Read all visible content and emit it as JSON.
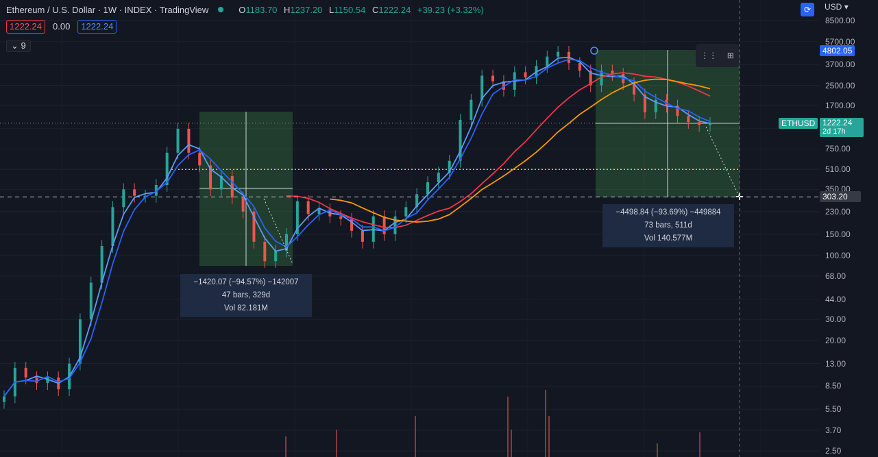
{
  "header": {
    "symbol_title": "Ethereum / U.S. Dollar · 1W · INDEX · TradingView",
    "ohlc": [
      {
        "k": "O",
        "v": "1183.70"
      },
      {
        "k": "H",
        "v": "1237.20"
      },
      {
        "k": "L",
        "v": "1150.54"
      },
      {
        "k": "C",
        "v": "1222.24"
      },
      {
        "k": "",
        "v": "+39.23 (+3.32%)"
      }
    ]
  },
  "indicators": {
    "first": "1222.24",
    "second": "0.00",
    "third": "1222.24",
    "collapsed_count": "9"
  },
  "axis": {
    "currency": "USD",
    "price_ticks": [
      "8500.00",
      "5700.00",
      "3700.00",
      "2500.00",
      "1700.00",
      "1100.00",
      "750.00",
      "510.00",
      "350.00",
      "230.00",
      "150.00",
      "100.00",
      "68.00",
      "44.00",
      "30.00",
      "20.00",
      "13.00",
      "8.50",
      "5.50",
      "3.70",
      "2.50"
    ]
  },
  "price_tags": {
    "crosshair_price": "303.20",
    "ath_price": "4802.05",
    "symbol": "ETHUSD",
    "last_price": "1222.24",
    "countdown": "2d 17h"
  },
  "measures": [
    {
      "change": "−1420.07 (−94.57%) −142007",
      "bars": "47 bars, 329d",
      "vol": "Vol 82.181M"
    },
    {
      "change": "−4498.84 (−93.69%) −449884",
      "bars": "73 bars, 511d",
      "vol": "Vol 140.577M"
    }
  ],
  "colors": {
    "up": "#26a69a",
    "down": "#ef5350",
    "ma_blue_1": "#2962ff",
    "ma_blue_2": "#5b9cf6",
    "ma_red": "#f23645",
    "ma_orange": "#ff9800",
    "accent": "#2962ff"
  },
  "chart_data": {
    "type": "line",
    "title": "Ethereum / U.S. Dollar · 1W · INDEX",
    "y_scale": "log",
    "ylim": [
      2.5,
      8500
    ],
    "series": [
      {
        "name": "Close",
        "values": [
          7,
          12,
          10,
          9,
          10,
          8,
          13,
          30,
          60,
          120,
          250,
          350,
          310,
          310,
          380,
          700,
          1100,
          700,
          550,
          350,
          450,
          300,
          230,
          130,
          90,
          110,
          150,
          280,
          220,
          240,
          210,
          200,
          160,
          130,
          210,
          150,
          210,
          250,
          320,
          400,
          480,
          600,
          1300,
          1900,
          3000,
          2700,
          2300,
          3200,
          2900,
          3600,
          4300,
          4700,
          3800,
          3300,
          2500,
          3300,
          3100,
          2600,
          2100,
          1500,
          1900,
          1700,
          1400,
          1250,
          1180,
          1222.24
        ]
      }
    ]
  }
}
